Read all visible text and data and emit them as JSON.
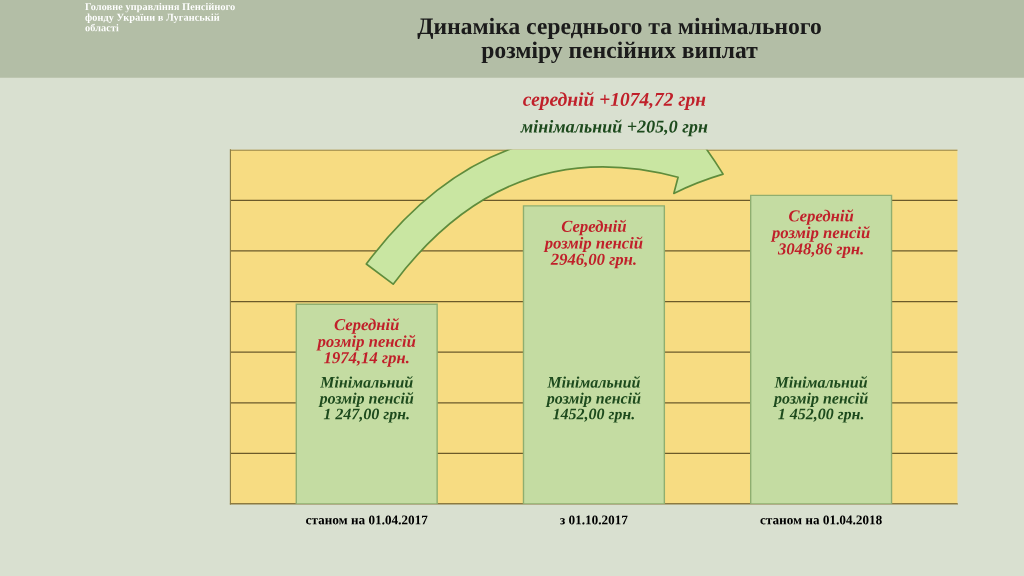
{
  "chart_data": {
    "type": "bar",
    "title": "Динаміка середнього та мінімального\nрозміру пенсійних виплат",
    "categories": [
      "станом на 01.04.2017",
      "з 01.10.2017",
      "станом на 01.04.2018"
    ],
    "values": [
      1974.14,
      2946.0,
      3048.86
    ],
    "color": "#c4dca2",
    "value_labels": [
      "Середній\nрозмір пенсій\n1974,14 грн.",
      "Середній\nрозмір пенсій\n2946,00 грн.",
      "Середній\nрозмір пенсій\n3048,86 грн."
    ],
    "ylim": [
      0,
      3500
    ],
    "yticks": [
      {
        "value": 0,
        "label": null
      },
      {
        "value": 500,
        "label": null
      },
      {
        "value": 1000,
        "label": null
      },
      {
        "value": 1500,
        "label": null
      },
      {
        "value": 2000,
        "label": null
      },
      {
        "value": 2500,
        "label": null
      },
      {
        "value": 3000,
        "label": null
      },
      {
        "value": 3500,
        "label": null
      }
    ],
    "grid": "y",
    "tick_labels": "x",
    "annotations": [
      "Головне управління Пенсійного\nфонду України в Луганській\nобласті",
      "середній +1074,72 грн",
      "мінімальний +205,0 грн",
      "Мінімальний\nрозмір пенсій\n1 247,00 грн.",
      "Мінімальний\nрозмір пенсій\n1452,00 грн.",
      "Мінімальний\nрозмір пенсій\n1 452,00 грн."
    ]
  }
}
